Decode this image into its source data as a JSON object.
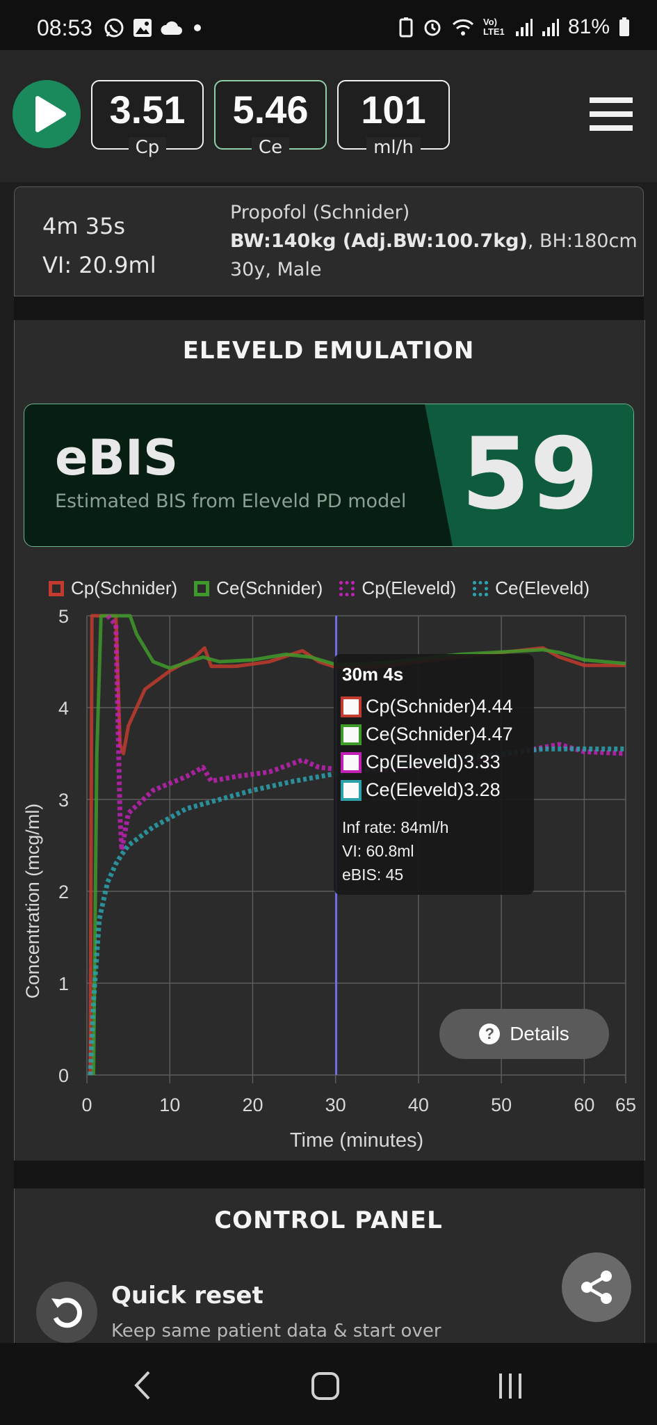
{
  "status_bar": {
    "time": "08:53",
    "battery": "81%",
    "network_label": "Vo) LTE1",
    "icons_left": [
      "whatsapp-icon",
      "gallery-icon",
      "cloud-icon",
      "dot-icon"
    ],
    "icons_right": [
      "battery-saver-icon",
      "alarm-icon",
      "wifi-icon",
      "signal-icon",
      "signal-icon",
      "battery-icon"
    ]
  },
  "toolbar": {
    "cp_value": "3.51",
    "cp_label": "Cp",
    "ce_value": "5.46",
    "ce_label": "Ce",
    "rate_value": "101",
    "rate_label": "ml/h"
  },
  "patient": {
    "elapsed": "4m 35s",
    "volume": "VI: 20.9ml",
    "drug_model": "Propofol (Schnider)",
    "weight": "BW:140kg (Adj.BW:100.7kg)",
    "height": ", BH:180cm",
    "age_sex": "30y, Male"
  },
  "emulation": {
    "title": "ELEVELD EMULATION",
    "ebis_label": "eBIS",
    "ebis_desc": "Estimated BIS from Eleveld PD model",
    "ebis_value": "59"
  },
  "colors": {
    "cp_schnider": "#c23b2e",
    "ce_schnider": "#3f9a2c",
    "cp_eleveld": "#c021b4",
    "ce_eleveld": "#2aa1ab",
    "cursor": "#6e6ee8",
    "accent_green": "#1a8a5c"
  },
  "chart_data": {
    "type": "line",
    "xlabel": "Time (minutes)",
    "ylabel": "Concentration (mcg/ml)",
    "xlim": [
      0,
      65
    ],
    "ylim": [
      0,
      5
    ],
    "x_ticks": [
      0,
      10,
      20,
      30,
      40,
      50,
      60,
      65
    ],
    "y_ticks": [
      0,
      1,
      2,
      3,
      4,
      5
    ],
    "grid": true,
    "legend_position": "top",
    "cursor_x": 30.07,
    "series": [
      {
        "name": "Cp(Schnider)",
        "style": "solid",
        "points": [
          [
            0.4,
            0
          ],
          [
            0.6,
            5
          ],
          [
            3.5,
            5
          ],
          [
            4,
            3.6
          ],
          [
            4.4,
            3.5
          ],
          [
            5,
            3.8
          ],
          [
            7,
            4.2
          ],
          [
            10,
            4.4
          ],
          [
            13,
            4.55
          ],
          [
            14.2,
            4.65
          ],
          [
            15,
            4.45
          ],
          [
            18,
            4.45
          ],
          [
            22,
            4.5
          ],
          [
            26,
            4.62
          ],
          [
            28,
            4.5
          ],
          [
            30,
            4.44
          ],
          [
            35,
            4.44
          ],
          [
            40,
            4.5
          ],
          [
            45,
            4.55
          ],
          [
            50,
            4.6
          ],
          [
            55,
            4.65
          ],
          [
            57,
            4.55
          ],
          [
            60,
            4.46
          ],
          [
            65,
            4.46
          ]
        ]
      },
      {
        "name": "Ce(Schnider)",
        "style": "solid",
        "points": [
          [
            0.8,
            0
          ],
          [
            1.2,
            3.5
          ],
          [
            1.7,
            5
          ],
          [
            5.2,
            5
          ],
          [
            6,
            4.8
          ],
          [
            8,
            4.5
          ],
          [
            10,
            4.43
          ],
          [
            14,
            4.55
          ],
          [
            16,
            4.5
          ],
          [
            20,
            4.52
          ],
          [
            24,
            4.58
          ],
          [
            27,
            4.55
          ],
          [
            30,
            4.47
          ],
          [
            35,
            4.48
          ],
          [
            45,
            4.58
          ],
          [
            55,
            4.63
          ],
          [
            57,
            4.6
          ],
          [
            60,
            4.52
          ],
          [
            65,
            4.48
          ]
        ]
      },
      {
        "name": "Cp(Eleveld)",
        "style": "dotted",
        "points": [
          [
            2.5,
            5
          ],
          [
            3,
            4.95
          ],
          [
            3.5,
            4.9
          ],
          [
            4,
            2.8
          ],
          [
            4.2,
            2.45
          ],
          [
            5,
            2.85
          ],
          [
            8,
            3.1
          ],
          [
            12,
            3.25
          ],
          [
            14,
            3.35
          ],
          [
            15,
            3.2
          ],
          [
            18,
            3.25
          ],
          [
            22,
            3.3
          ],
          [
            26,
            3.43
          ],
          [
            28,
            3.35
          ],
          [
            30,
            3.33
          ],
          [
            36,
            3.32
          ],
          [
            42,
            3.38
          ],
          [
            48,
            3.45
          ],
          [
            54,
            3.55
          ],
          [
            57,
            3.6
          ],
          [
            60,
            3.52
          ],
          [
            65,
            3.5
          ]
        ]
      },
      {
        "name": "Ce(Eleveld)",
        "style": "dotted",
        "points": [
          [
            0.4,
            0
          ],
          [
            0.8,
            0.8
          ],
          [
            1.5,
            1.7
          ],
          [
            2.5,
            2.1
          ],
          [
            3.5,
            2.3
          ],
          [
            4.2,
            2.4
          ],
          [
            5,
            2.5
          ],
          [
            8,
            2.7
          ],
          [
            12,
            2.9
          ],
          [
            16,
            3.0
          ],
          [
            20,
            3.1
          ],
          [
            25,
            3.2
          ],
          [
            30,
            3.28
          ],
          [
            35,
            3.34
          ],
          [
            40,
            3.4
          ],
          [
            45,
            3.45
          ],
          [
            50,
            3.5
          ],
          [
            55,
            3.55
          ],
          [
            60,
            3.55
          ],
          [
            65,
            3.55
          ]
        ]
      }
    ]
  },
  "tooltip": {
    "title": "30m 4s",
    "rows": [
      {
        "label": "Cp(Schnider)4.44"
      },
      {
        "label": "Ce(Schnider)4.47"
      },
      {
        "label": "Cp(Eleveld)3.33"
      },
      {
        "label": "Ce(Eleveld)3.28"
      }
    ],
    "inf_rate": "Inf rate: 84ml/h",
    "volume": "VI: 60.8ml",
    "ebis": "eBIS: 45"
  },
  "details_button": {
    "label": "Details"
  },
  "control_panel": {
    "title": "CONTROL PANEL",
    "quick_reset_title": "Quick reset",
    "quick_reset_desc": "Keep same patient data & start over"
  }
}
